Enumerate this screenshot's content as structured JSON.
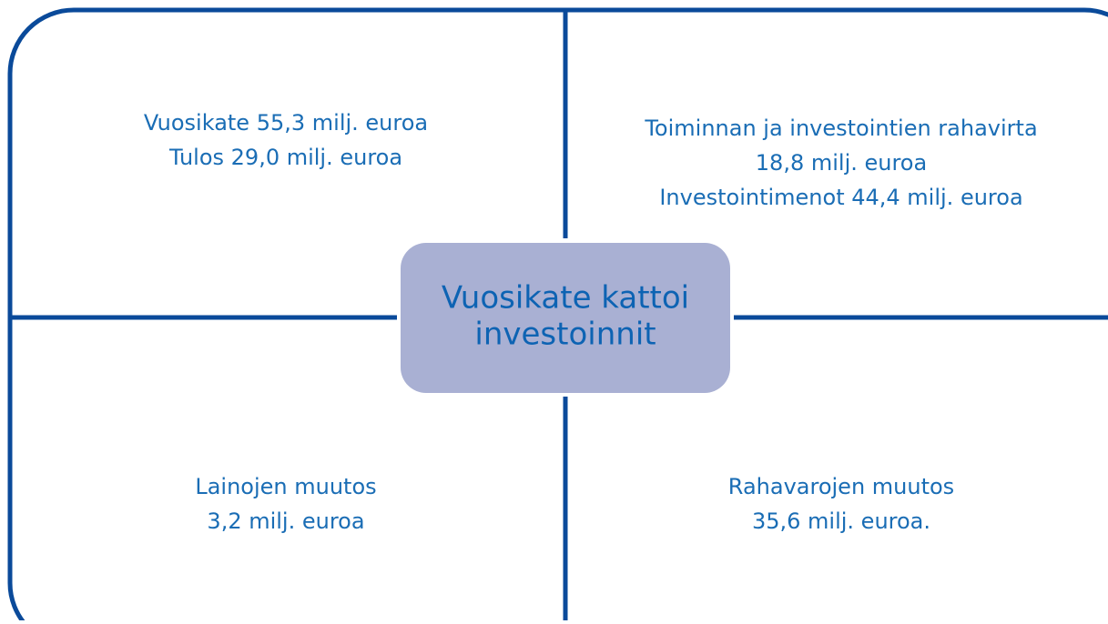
{
  "center": {
    "lines": [
      "Vuosikate kattoi",
      "investoinnit"
    ]
  },
  "quadrants": [
    {
      "lines": [
        "Vuosikate 55,3 milj. euroa",
        "Tulos 29,0 milj. euroa"
      ]
    },
    {
      "lines": [
        "Toiminnan ja investointien rahavirta",
        "18,8 milj. euroa",
        "Investointimenot 44,4 milj. euroa"
      ]
    },
    {
      "lines": [
        "Lainojen muutos",
        "3,2 milj. euroa"
      ]
    },
    {
      "lines": [
        "Rahavarojen muutos",
        "35,6 milj. euroa."
      ]
    }
  ]
}
